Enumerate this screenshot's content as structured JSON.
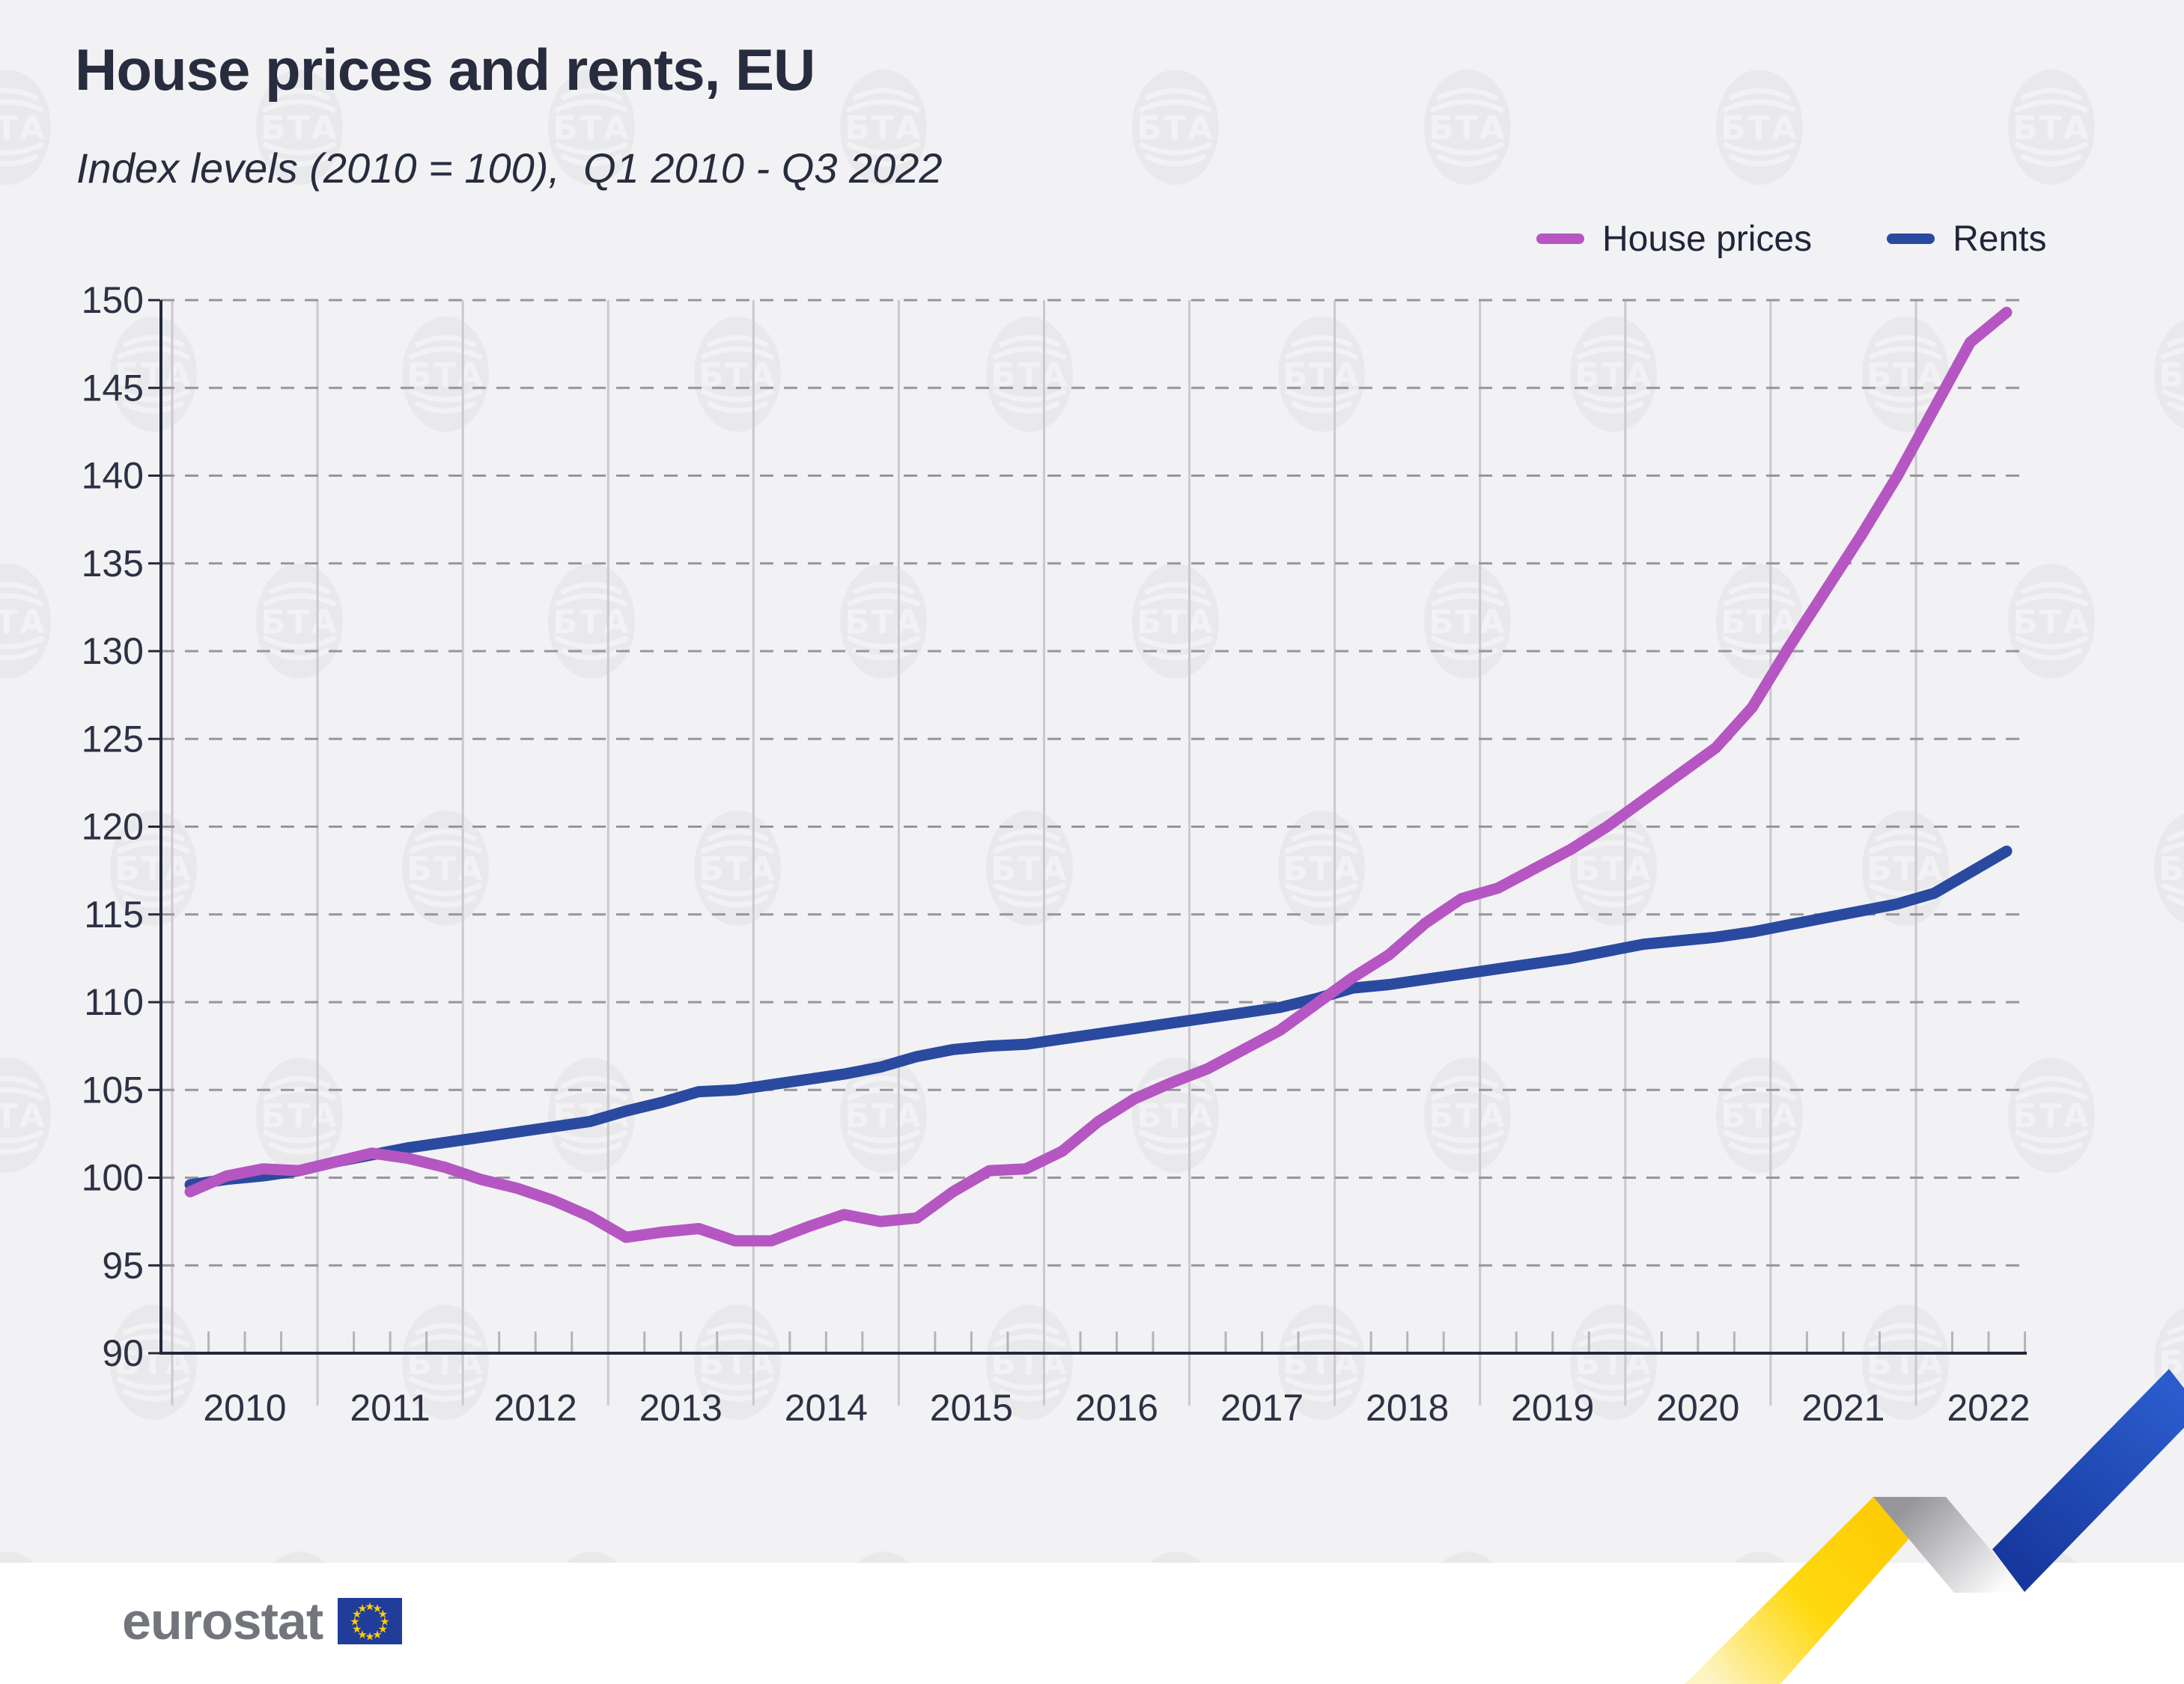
{
  "header": {
    "title": "House prices and rents, EU",
    "subtitle": "Index levels (2010 = 100),  Q1 2010 - Q3 2022"
  },
  "legend": [
    {
      "label": "House prices",
      "color": "#b556c3"
    },
    {
      "label": "Rents",
      "color": "#2a4aa0"
    }
  ],
  "footer": {
    "brand": "eurostat"
  },
  "watermark": {
    "text": "БТА",
    "disc_color": "#e9e9ec",
    "carve_color": "#f2f2f4"
  },
  "colors": {
    "card_background": "#f2f2f4",
    "axis": "#23283b",
    "tick_label": "#2c3144",
    "grid_dashed": "#96969b",
    "grid_year": "#c9c9ce",
    "quarter_tick": "#b4b4b9",
    "eu_flag_blue": "#1f3d99",
    "eu_star_yellow": "#ffcc00",
    "ribbon_yellow": "#ffd60a",
    "ribbon_blue": "#2050c0"
  },
  "chart_data": {
    "type": "line",
    "title": "House prices and rents, EU",
    "subtitle": "Index levels (2010 = 100), Q1 2010 - Q3 2022",
    "frequency": "quarterly",
    "x_start": "2010-Q1",
    "x_end": "2022-Q3",
    "xticks": [
      2010,
      2011,
      2012,
      2013,
      2014,
      2015,
      2016,
      2017,
      2018,
      2019,
      2020,
      2021,
      2022
    ],
    "yticks": [
      90,
      95,
      100,
      105,
      110,
      115,
      120,
      125,
      130,
      135,
      140,
      145,
      150
    ],
    "ylim": [
      90,
      150
    ],
    "grid": {
      "horizontal": "dashed",
      "vertical": "solid-at-year-boundaries"
    },
    "legend_position": "top-right",
    "series": [
      {
        "name": "House prices",
        "color": "#b556c3",
        "values": [
          99.2,
          100.1,
          100.5,
          100.4,
          100.9,
          101.4,
          101.1,
          100.6,
          99.9,
          99.4,
          98.7,
          97.8,
          96.6,
          96.9,
          97.1,
          96.4,
          96.4,
          97.2,
          97.9,
          97.5,
          97.7,
          99.2,
          100.4,
          100.5,
          101.5,
          103.2,
          104.5,
          105.4,
          106.2,
          107.3,
          108.4,
          109.9,
          111.4,
          112.7,
          114.5,
          115.9,
          116.5,
          117.6,
          118.7,
          120.0,
          121.5,
          123.0,
          124.5,
          126.8,
          130.2,
          133.4,
          136.6,
          140.0,
          143.8,
          147.6,
          149.3
        ]
      },
      {
        "name": "Rents",
        "color": "#2a4aa0",
        "values": [
          99.6,
          99.9,
          100.1,
          100.4,
          100.9,
          101.3,
          101.7,
          102.0,
          102.3,
          102.6,
          102.9,
          103.2,
          103.8,
          104.3,
          104.9,
          105.0,
          105.3,
          105.6,
          105.9,
          106.3,
          106.9,
          107.3,
          107.5,
          107.6,
          107.9,
          108.2,
          108.5,
          108.8,
          109.1,
          109.4,
          109.7,
          110.2,
          110.8,
          111.0,
          111.3,
          111.6,
          111.9,
          112.2,
          112.5,
          112.9,
          113.3,
          113.5,
          113.7,
          114.0,
          114.4,
          114.8,
          115.2,
          115.6,
          116.2,
          117.4,
          118.6
        ]
      }
    ]
  }
}
